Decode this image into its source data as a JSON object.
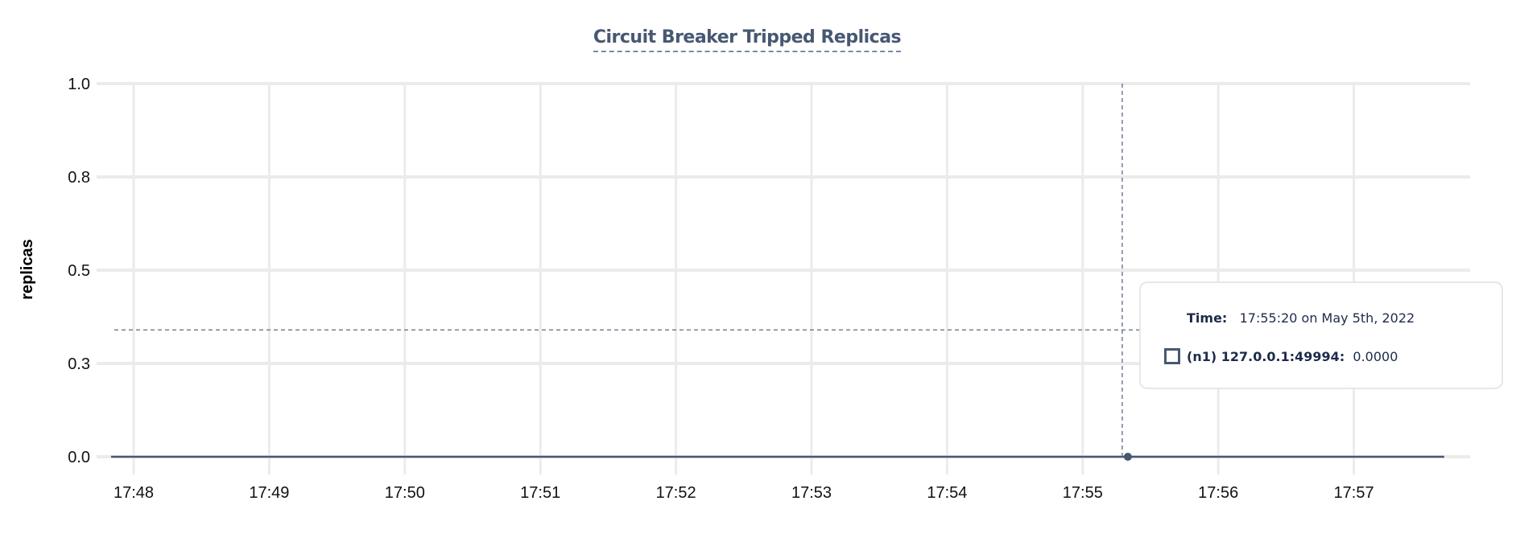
{
  "chart_data": {
    "type": "line",
    "title": "Circuit Breaker Tripped Replicas",
    "ylabel": "replicas",
    "xlabel": "",
    "ylim": [
      0,
      1
    ],
    "yticks": [
      0,
      0.25,
      0.5,
      0.75,
      1.0
    ],
    "ytick_labels": [
      "0.0",
      "0.3",
      "0.5",
      "0.8",
      "1.0"
    ],
    "xlim": [
      "17:47:45",
      "17:57:50"
    ],
    "xtick_labels": [
      "17:48",
      "17:49",
      "17:50",
      "17:51",
      "17:52",
      "17:53",
      "17:54",
      "17:55",
      "17:56",
      "17:57"
    ],
    "grid": true,
    "series": [
      {
        "name": "(n1) 127.0.0.1:49994",
        "color": "#475872",
        "x": [
          "17:47:50",
          "17:57:40"
        ],
        "y": [
          0,
          0
        ]
      }
    ],
    "crosshair": {
      "x": "17:55:20",
      "y_guide": 0.34
    }
  },
  "tooltip": {
    "time_label": "Time:",
    "time_value": "17:55:20 on May 5th, 2022",
    "series_label": "(n1) 127.0.0.1:49994:",
    "series_value": "0.0000"
  }
}
